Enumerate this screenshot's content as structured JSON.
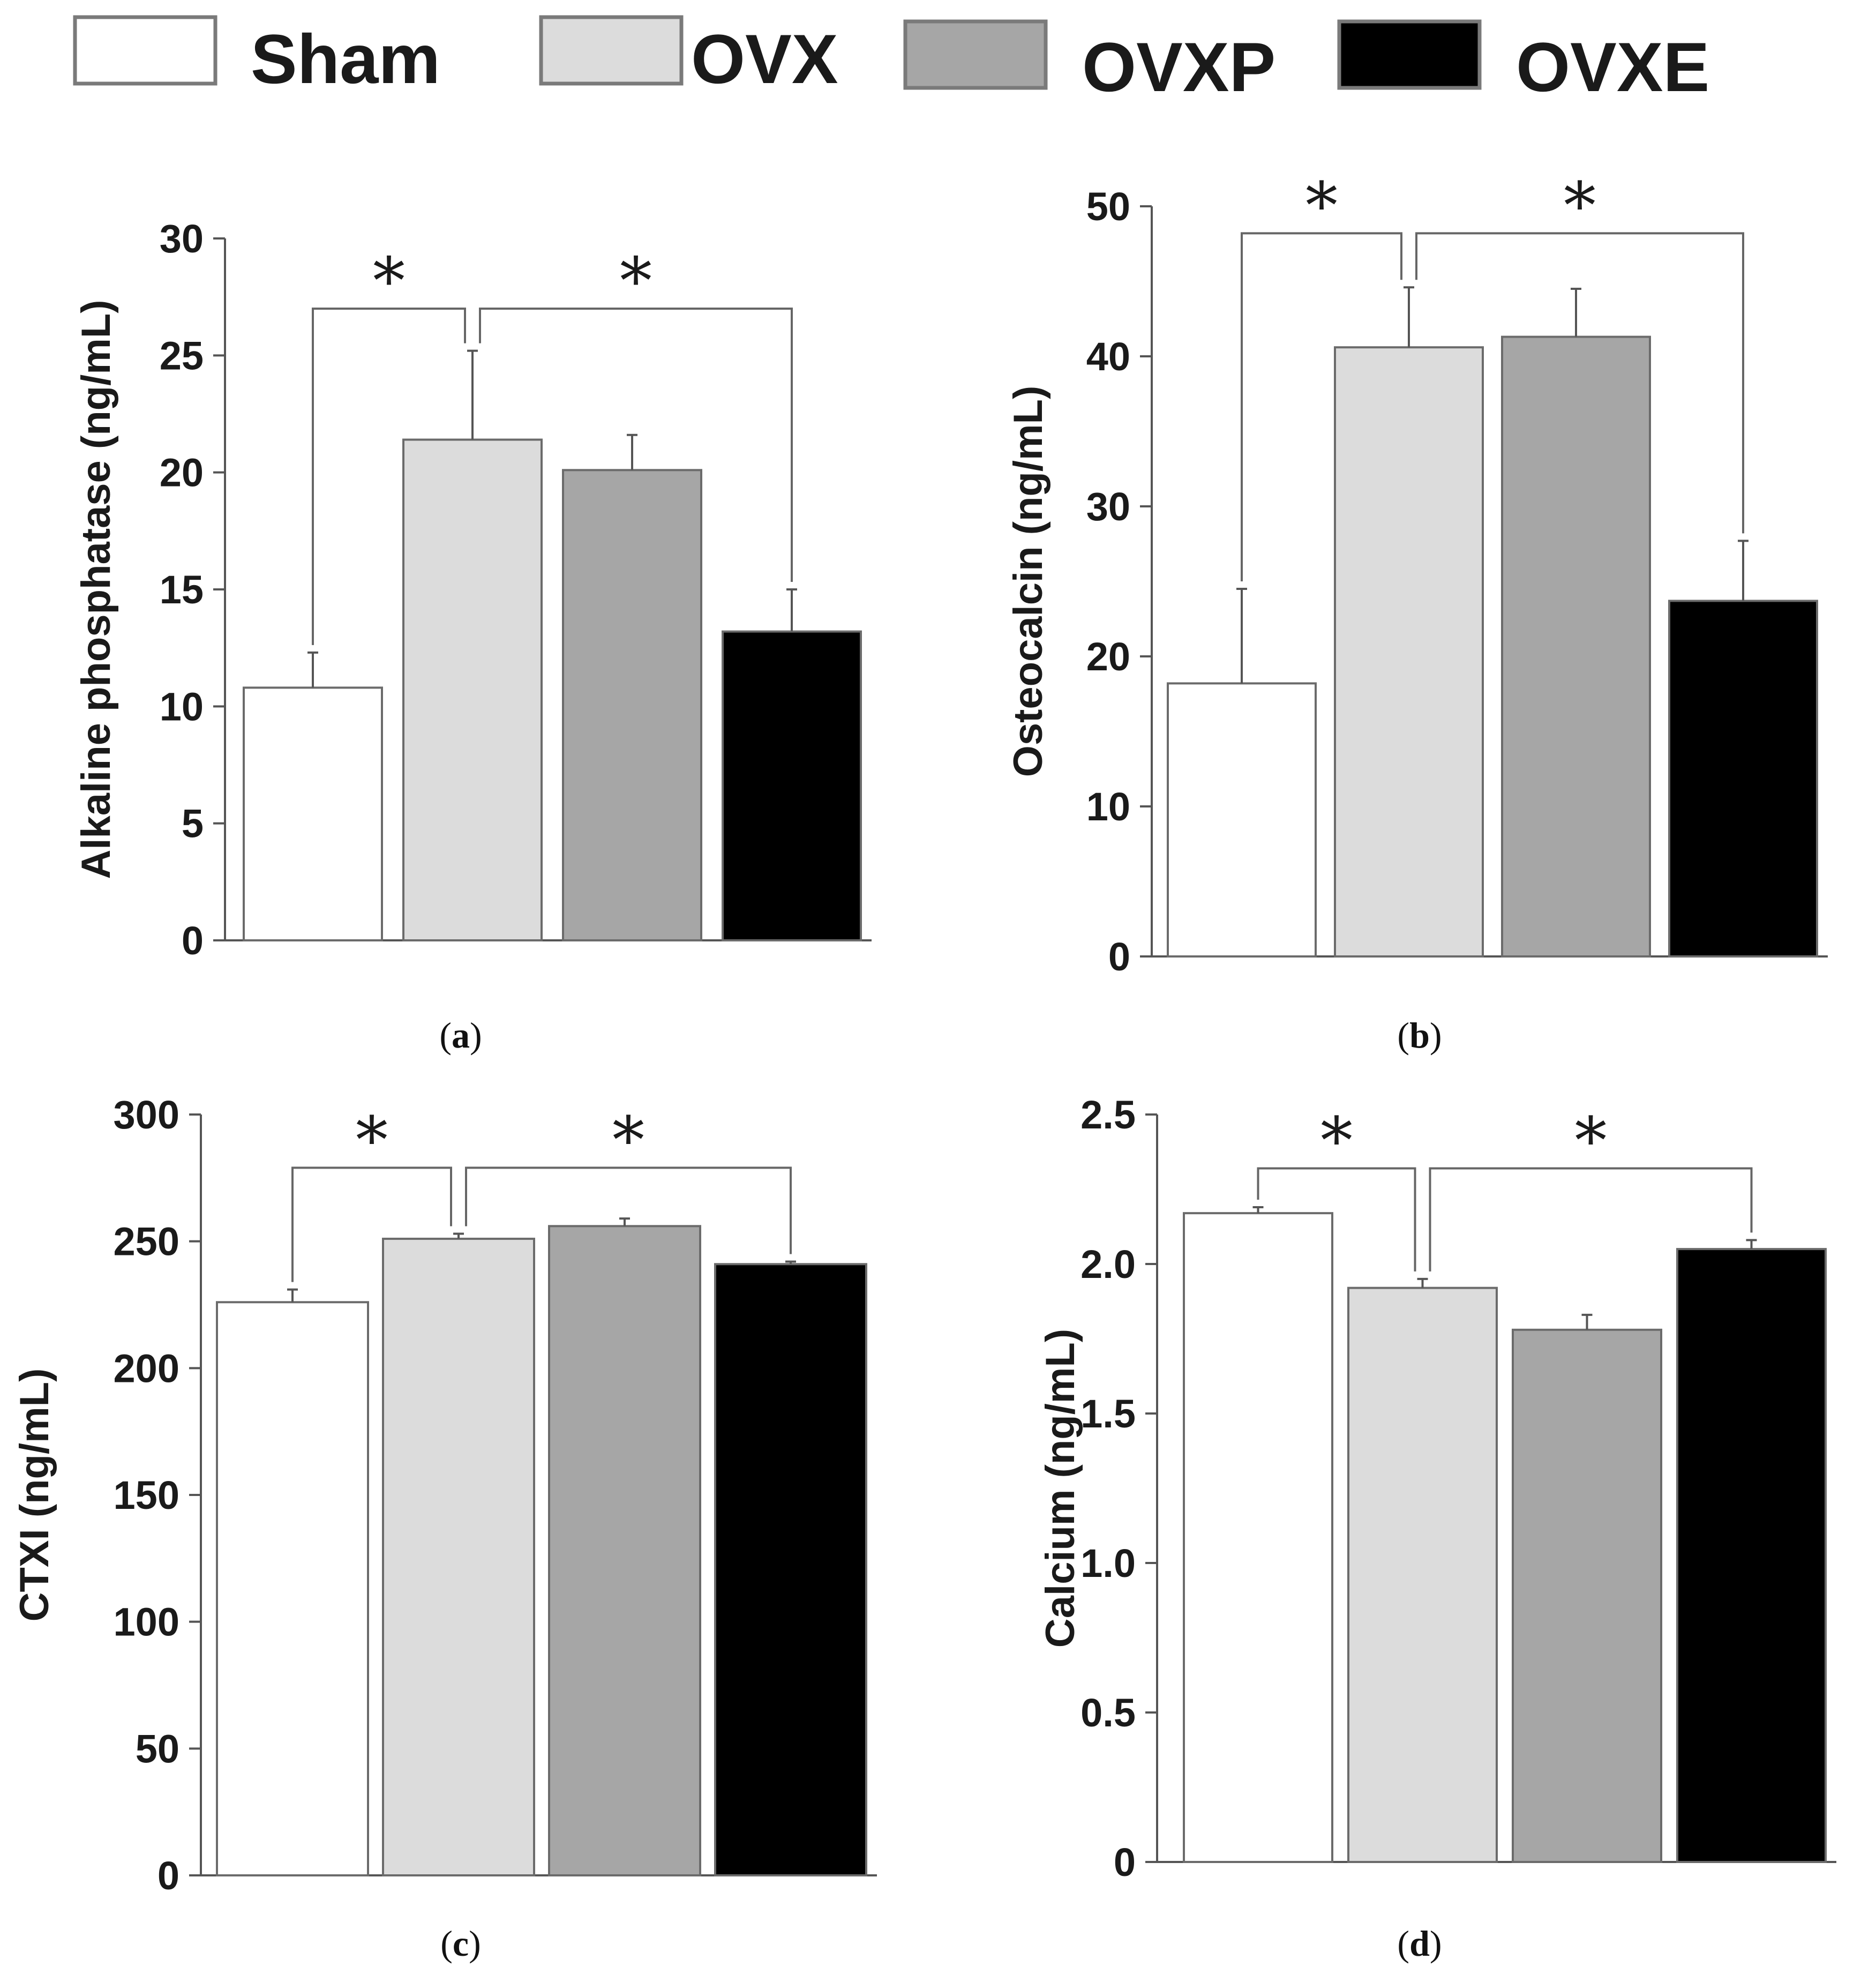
{
  "legend": [
    {
      "label": "Sham",
      "color": "#ffffff"
    },
    {
      "label": "OVX",
      "color": "#dcdcdc"
    },
    {
      "label": "OVXP",
      "color": "#a6a6a6"
    },
    {
      "label": "OVXE",
      "color": "#000000"
    }
  ],
  "chart_data": [
    {
      "id": "a",
      "type": "bar",
      "caption_open": "(",
      "caption_letter": "a",
      "caption_close": ")",
      "ylabel": "Alkaline phosphatase (ng/mL)",
      "ylim": [
        0,
        30
      ],
      "yticks": [
        0,
        5,
        10,
        15,
        20,
        25,
        30
      ],
      "ytick_labels": [
        "0",
        "5",
        "10",
        "15",
        "20",
        "25",
        "30"
      ],
      "categories": [
        "Sham",
        "OVX",
        "OVXP",
        "OVXE"
      ],
      "values": [
        10.8,
        21.4,
        20.1,
        13.2
      ],
      "errors": [
        1.5,
        3.8,
        1.5,
        1.8
      ],
      "significance": [
        {
          "from": 0,
          "to": 1,
          "label": "*",
          "level": 27,
          "anchor": "left"
        },
        {
          "from": 1,
          "to": 3,
          "label": "*",
          "level": 27,
          "anchor": "right"
        }
      ]
    },
    {
      "id": "b",
      "type": "bar",
      "caption_open": "(",
      "caption_letter": "b",
      "caption_close": ")",
      "ylabel": "Osteocalcin (ng/mL)",
      "ylim": [
        0,
        50
      ],
      "yticks": [
        0,
        10,
        20,
        30,
        40,
        50
      ],
      "ytick_labels": [
        "0",
        "10",
        "20",
        "30",
        "40",
        "50"
      ],
      "categories": [
        "Sham",
        "OVX",
        "OVXP",
        "OVXE"
      ],
      "values": [
        18.2,
        40.6,
        41.3,
        23.7
      ],
      "errors": [
        6.3,
        4.0,
        3.2,
        4.0
      ],
      "significance": [
        {
          "from": 0,
          "to": 1,
          "label": "*",
          "level": 48.2,
          "anchor": "left"
        },
        {
          "from": 1,
          "to": 3,
          "label": "*",
          "level": 48.2,
          "anchor": "right"
        }
      ]
    },
    {
      "id": "c",
      "type": "bar",
      "caption_open": "(",
      "caption_letter": "c",
      "caption_close": ")",
      "ylabel": "CTXI (ng/mL)",
      "ylim": [
        0,
        300
      ],
      "yticks": [
        0,
        50,
        100,
        150,
        200,
        250,
        300
      ],
      "ytick_labels": [
        "0",
        "50",
        "100",
        "150",
        "200",
        "250",
        "300"
      ],
      "categories": [
        "Sham",
        "OVX",
        "OVXP",
        "OVXE"
      ],
      "values": [
        226,
        251,
        256,
        241
      ],
      "errors": [
        5,
        2,
        3,
        1
      ],
      "significance": [
        {
          "from": 0,
          "to": 1,
          "label": "*",
          "level": 279,
          "anchor": "left"
        },
        {
          "from": 1,
          "to": 3,
          "label": "*",
          "level": 279,
          "anchor": "right"
        }
      ]
    },
    {
      "id": "d",
      "type": "bar",
      "caption_open": "(",
      "caption_letter": "d",
      "caption_close": ")",
      "ylabel": "Calcium (ng/mL)",
      "ylim": [
        0,
        2.5
      ],
      "yticks": [
        0,
        0.5,
        1.0,
        1.5,
        2.0,
        2.5
      ],
      "ytick_labels": [
        "0",
        "0.5",
        "1.0",
        "1.5",
        "2.0",
        "2.5"
      ],
      "categories": [
        "Sham",
        "OVX",
        "OVXP",
        "OVXE"
      ],
      "values": [
        2.17,
        1.92,
        1.78,
        2.05
      ],
      "errors": [
        0.02,
        0.03,
        0.05,
        0.03
      ],
      "significance": [
        {
          "from": 0,
          "to": 1,
          "label": "*",
          "level": 2.32,
          "anchor": "left"
        },
        {
          "from": 1,
          "to": 3,
          "label": "*",
          "level": 2.32,
          "anchor": "right"
        }
      ]
    }
  ]
}
